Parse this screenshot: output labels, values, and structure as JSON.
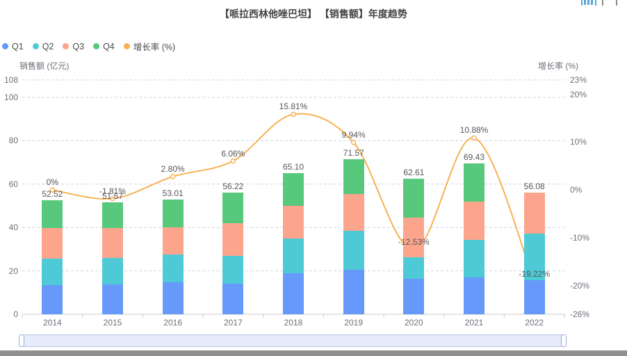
{
  "title": "【哌拉西林他唑巴坦】 【销售额】年度趋势",
  "toolbox": {
    "data_view_label": "数据视图",
    "save_image_label": "保存为图片",
    "data_view_color": "#57a4d6",
    "save_image_color": "#8a8a8a"
  },
  "legend": [
    {
      "label": "Q1",
      "color": "#6699fa"
    },
    {
      "label": "Q2",
      "color": "#4ecad7"
    },
    {
      "label": "Q3",
      "color": "#fda58c"
    },
    {
      "label": "Q4",
      "color": "#58c87c"
    },
    {
      "label": "增长率 (%)",
      "color": "#f8b152"
    }
  ],
  "chart_data": {
    "type": "bar",
    "subtype": "stacked-bar-with-line",
    "categories": [
      "2014",
      "2015",
      "2016",
      "2017",
      "2018",
      "2019",
      "2020",
      "2021",
      "2022"
    ],
    "series": [
      {
        "name": "Q1",
        "type": "bar",
        "stack": "total",
        "color": "#6699fa",
        "values": [
          13.5,
          13.8,
          14.8,
          14.0,
          18.8,
          20.6,
          16.3,
          17.0,
          15.6
        ]
      },
      {
        "name": "Q2",
        "type": "bar",
        "stack": "total",
        "color": "#4ecad7",
        "values": [
          12.2,
          12.1,
          12.7,
          13.0,
          16.1,
          17.9,
          9.9,
          17.2,
          21.6
        ]
      },
      {
        "name": "Q3",
        "type": "bar",
        "stack": "total",
        "color": "#fda58c",
        "values": [
          14.1,
          13.9,
          12.6,
          15.1,
          15.2,
          17.1,
          18.5,
          17.8,
          18.9
        ]
      },
      {
        "name": "Q4",
        "type": "bar",
        "stack": "total",
        "color": "#58c87c",
        "values": [
          12.7,
          11.8,
          12.9,
          14.1,
          15.0,
          16.0,
          17.9,
          17.4,
          0
        ]
      },
      {
        "name": "增长率 (%)",
        "type": "line",
        "axis": "right",
        "color": "#f8b152",
        "smooth": true,
        "values": [
          0,
          -1.81,
          2.8,
          6.06,
          15.81,
          9.94,
          -12.53,
          10.88,
          -19.22
        ]
      }
    ],
    "total_labels": [
      "52.52",
      "51.57",
      "53.01",
      "56.22",
      "65.10",
      "71.57",
      "62.61",
      "69.43",
      "56.08"
    ],
    "growth_labels": [
      "0%",
      "-1.81%",
      "2.80%",
      "6.06%",
      "15.81%",
      "9.94%",
      "-12.53%",
      "10.88%",
      "-19.22%"
    ],
    "left_axis": {
      "name": "销售额 (亿元)",
      "min": 0,
      "max": 108,
      "ticks": [
        0,
        20,
        40,
        60,
        80,
        100,
        108
      ],
      "tick_labels": [
        "0",
        "20",
        "40",
        "60",
        "80",
        "100",
        "108"
      ]
    },
    "right_axis": {
      "name": "增长率 (%)",
      "min": -26,
      "max": 23,
      "ticks": [
        -26,
        -20,
        -10,
        0,
        10,
        20,
        23
      ],
      "tick_labels": [
        "-26%",
        "-20%",
        "-10%",
        "0%",
        "10%",
        "20%",
        "23%"
      ]
    },
    "grid": {
      "dashed": true,
      "color": "#ccd3e6"
    },
    "legend_position": "top-left"
  },
  "datazoom": {
    "start": "2014",
    "end": "2022"
  }
}
